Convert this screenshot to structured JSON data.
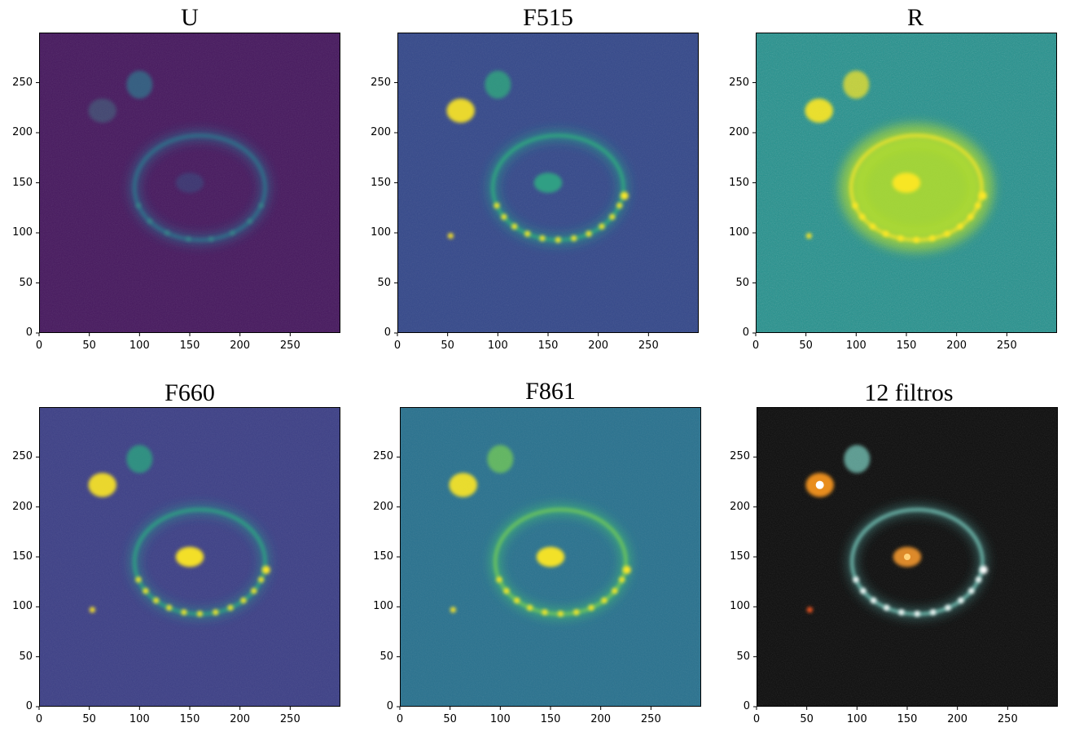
{
  "figure": {
    "panels": [
      {
        "title": "U",
        "style": "viridis-dark",
        "bg": "#46185e"
      },
      {
        "title": "F515",
        "style": "viridis-mid",
        "bg": "#34488a"
      },
      {
        "title": "R",
        "style": "viridis-bright",
        "bg": "#21908c"
      },
      {
        "title": "F660",
        "style": "viridis-mid2",
        "bg": "#3c3f86"
      },
      {
        "title": "F861",
        "style": "viridis-teal",
        "bg": "#28718e"
      },
      {
        "title": "12 filtros",
        "style": "rgb",
        "bg": "#0c0c0c"
      }
    ],
    "axes": {
      "x_ticks": [
        "0",
        "50",
        "100",
        "150",
        "200",
        "250"
      ],
      "y_ticks": [
        "0",
        "50",
        "100",
        "150",
        "200",
        "250"
      ],
      "x_range": [
        0,
        300
      ],
      "y_range": [
        0,
        300
      ]
    },
    "objects": {
      "ring": {
        "cx": 160,
        "cy": 145,
        "rx": 65,
        "ry": 52
      },
      "nucleus": {
        "x": 150,
        "y": 150
      },
      "companion_a": {
        "x": 63,
        "y": 222
      },
      "companion_b": {
        "x": 100,
        "y": 248
      },
      "knot_right": {
        "x": 226,
        "y": 137
      },
      "star_left": {
        "x": 53,
        "y": 97
      }
    }
  }
}
